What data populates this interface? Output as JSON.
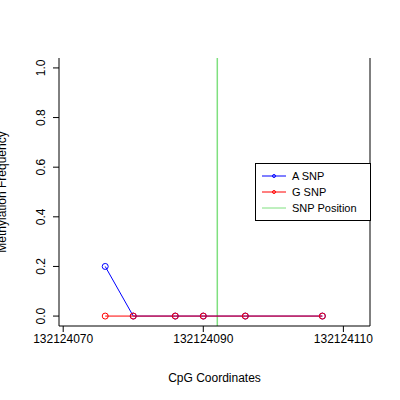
{
  "chart_data": {
    "type": "line",
    "x_label": "CpG Coordinates",
    "y_label": "Methylation Frequency",
    "x": [
      132124076,
      132124080,
      132124086,
      132124090,
      132124096,
      132124107
    ],
    "series": [
      {
        "name": "A SNP",
        "color": "#0000ff",
        "values": [
          0.2,
          0,
          0,
          0,
          0,
          0
        ],
        "marker": "circle"
      },
      {
        "name": "G SNP",
        "color": "#ff0000",
        "values": [
          0,
          0,
          0,
          0,
          0,
          0
        ],
        "marker": "circle"
      }
    ],
    "vlines": [
      {
        "name": "SNP Position",
        "x": 132124092,
        "color": "#7fe07f"
      }
    ],
    "xlim": [
      132124069.4,
      132124113.8
    ],
    "xticks": [
      132124070,
      132124090,
      132124110
    ],
    "ylim": [
      -0.04,
      1.04
    ],
    "yticks": [
      {
        "value": 0,
        "label": "0.0"
      },
      {
        "value": 0.2,
        "label": "0.2"
      },
      {
        "value": 0.4,
        "label": "0.4"
      },
      {
        "value": 0.6,
        "label": "0.6"
      },
      {
        "value": 0.8,
        "label": "0.8"
      },
      {
        "value": 1,
        "label": "1.0"
      }
    ],
    "legend": "right",
    "grid": false
  }
}
